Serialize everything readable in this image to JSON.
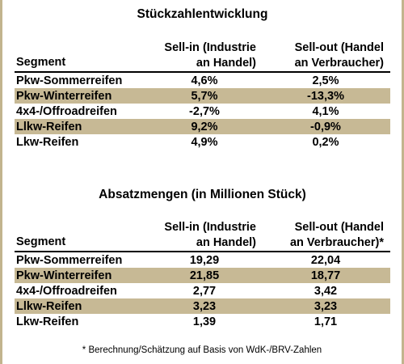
{
  "table1": {
    "title": "Stückzahlentwicklung",
    "header": {
      "segment": "Segment",
      "sellin_line1": "Sell-in (Industrie",
      "sellin_line2": "an Handel)",
      "sellout_line1": "Sell-out (Handel",
      "sellout_line2": "an Verbraucher)"
    },
    "rows": [
      {
        "segment": "Pkw-Sommerreifen",
        "sellin": "4,6%",
        "sellout": "2,5%"
      },
      {
        "segment": "Pkw-Winterreifen",
        "sellin": "5,7%",
        "sellout": "-13,3%"
      },
      {
        "segment": "4x4-/Offroadreifen",
        "sellin": "-2,7%",
        "sellout": "4,1%"
      },
      {
        "segment": "Llkw-Reifen",
        "sellin": "9,2%",
        "sellout": "-0,9%"
      },
      {
        "segment": "Lkw-Reifen",
        "sellin": "4,9%",
        "sellout": "0,2%"
      }
    ]
  },
  "table2": {
    "title": "Absatzmengen (in Millionen Stück)",
    "header": {
      "segment": "Segment",
      "sellin_line1": "Sell-in (Industrie",
      "sellin_line2": "an Handel)",
      "sellout_line1": "Sell-out (Handel",
      "sellout_line2": "an Verbraucher)*"
    },
    "rows": [
      {
        "segment": "Pkw-Sommerreifen",
        "sellin": "19,29",
        "sellout": "22,04"
      },
      {
        "segment": "Pkw-Winterreifen",
        "sellin": "21,85",
        "sellout": "18,77"
      },
      {
        "segment": "4x4-/Offroadreifen",
        "sellin": "2,77",
        "sellout": "3,42"
      },
      {
        "segment": "Llkw-Reifen",
        "sellin": "3,23",
        "sellout": "3,23"
      },
      {
        "segment": "Lkw-Reifen",
        "sellin": "1,39",
        "sellout": "1,71"
      }
    ]
  },
  "footnote": "* Berechnung/Schätzung auf Basis von WdK-/BRV-Zahlen",
  "colors": {
    "row_shade": "#c7b995",
    "frame": "#c2b48e"
  }
}
